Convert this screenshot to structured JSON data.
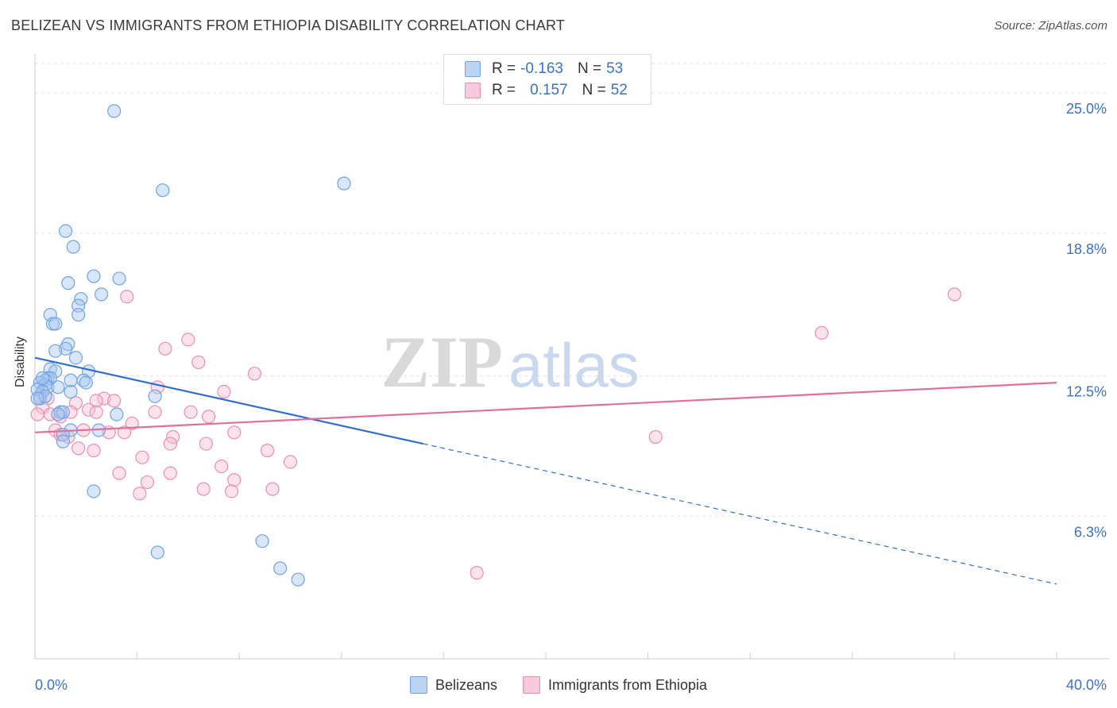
{
  "header": {
    "title": "BELIZEAN VS IMMIGRANTS FROM ETHIOPIA DISABILITY CORRELATION CHART",
    "source": "Source: ZipAtlas.com"
  },
  "watermark": {
    "part1": "ZIP",
    "part2": "atlas"
  },
  "legend_stats": [
    {
      "r_label": "R =",
      "r_value": "-0.163",
      "n_label": "N =",
      "n_value": "53"
    },
    {
      "r_label": "R =",
      "r_value": "0.157",
      "n_label": "N =",
      "n_value": "52"
    }
  ],
  "colors": {
    "blue": "#6fa3e6",
    "blue_fill": "#a9c8f0",
    "blue_line": "#2f6fcf",
    "pink": "#ea8fb0",
    "pink_fill": "#f6bfd2",
    "pink_line": "#e0709a",
    "tick_label": "#3b73c4",
    "grid": "#e3e3e3"
  },
  "chart_data": {
    "type": "scatter",
    "title": "BELIZEAN VS IMMIGRANTS FROM ETHIOPIA DISABILITY CORRELATION CHART",
    "xlabel": "",
    "ylabel": "Disability",
    "xlim": [
      0,
      40
    ],
    "ylim": [
      0,
      26.3
    ],
    "x_tick_labels": [
      "0.0%",
      "40.0%"
    ],
    "y_ticks": [
      6.3,
      12.5,
      18.8,
      25.0
    ],
    "y_tick_labels": [
      "6.3%",
      "12.5%",
      "18.8%",
      "25.0%"
    ],
    "grid": true,
    "legend_position": "bottom-center",
    "series": [
      {
        "name": "Belizeans",
        "color": "#6fa3e6",
        "trend": {
          "x": [
            0,
            15.2,
            40
          ],
          "y": [
            13.3,
            9.5,
            3.3
          ],
          "solid_until": 15.2
        },
        "points": [
          [
            3.1,
            24.2
          ],
          [
            5.0,
            20.7
          ],
          [
            12.1,
            21.0
          ],
          [
            1.2,
            18.9
          ],
          [
            1.5,
            18.2
          ],
          [
            2.3,
            16.9
          ],
          [
            3.3,
            16.8
          ],
          [
            1.3,
            16.6
          ],
          [
            2.6,
            16.1
          ],
          [
            1.8,
            15.9
          ],
          [
            1.7,
            15.6
          ],
          [
            1.7,
            15.2
          ],
          [
            0.6,
            15.2
          ],
          [
            0.7,
            14.8
          ],
          [
            0.8,
            14.8
          ],
          [
            1.3,
            13.9
          ],
          [
            1.2,
            13.7
          ],
          [
            0.8,
            13.6
          ],
          [
            1.6,
            13.3
          ],
          [
            0.6,
            12.8
          ],
          [
            0.8,
            12.7
          ],
          [
            2.1,
            12.7
          ],
          [
            0.5,
            12.4
          ],
          [
            0.6,
            12.4
          ],
          [
            0.4,
            12.3
          ],
          [
            1.4,
            12.3
          ],
          [
            1.9,
            12.3
          ],
          [
            2.0,
            12.2
          ],
          [
            0.2,
            12.2
          ],
          [
            0.4,
            12.1
          ],
          [
            0.5,
            12.0
          ],
          [
            0.9,
            12.0
          ],
          [
            0.1,
            11.9
          ],
          [
            0.3,
            11.8
          ],
          [
            1.4,
            11.8
          ],
          [
            0.2,
            11.5
          ],
          [
            0.4,
            11.6
          ],
          [
            4.7,
            11.6
          ],
          [
            1.0,
            10.9
          ],
          [
            1.1,
            10.9
          ],
          [
            0.9,
            10.8
          ],
          [
            3.2,
            10.8
          ],
          [
            1.4,
            10.1
          ],
          [
            2.5,
            10.1
          ],
          [
            1.1,
            9.9
          ],
          [
            1.1,
            9.6
          ],
          [
            2.3,
            7.4
          ],
          [
            8.9,
            5.2
          ],
          [
            4.8,
            4.7
          ],
          [
            9.6,
            4.0
          ],
          [
            10.3,
            3.5
          ],
          [
            0.1,
            11.5
          ],
          [
            0.3,
            12.4
          ]
        ]
      },
      {
        "name": "Immigrants from Ethiopia",
        "color": "#ea8fb0",
        "trend": {
          "x": [
            0,
            40
          ],
          "y": [
            10.0,
            12.2
          ]
        },
        "points": [
          [
            36.0,
            16.1
          ],
          [
            3.6,
            16.0
          ],
          [
            30.8,
            14.4
          ],
          [
            6.0,
            14.1
          ],
          [
            5.1,
            13.7
          ],
          [
            6.4,
            13.1
          ],
          [
            8.6,
            12.6
          ],
          [
            4.8,
            12.0
          ],
          [
            7.4,
            11.8
          ],
          [
            2.7,
            11.5
          ],
          [
            3.1,
            11.4
          ],
          [
            0.2,
            11.6
          ],
          [
            0.5,
            11.5
          ],
          [
            2.4,
            11.4
          ],
          [
            1.6,
            11.3
          ],
          [
            0.3,
            11.1
          ],
          [
            2.1,
            11.0
          ],
          [
            1.4,
            10.9
          ],
          [
            2.4,
            10.9
          ],
          [
            0.6,
            10.8
          ],
          [
            4.7,
            10.9
          ],
          [
            6.1,
            10.9
          ],
          [
            6.8,
            10.7
          ],
          [
            1.0,
            10.7
          ],
          [
            3.8,
            10.4
          ],
          [
            0.8,
            10.1
          ],
          [
            1.9,
            10.1
          ],
          [
            1.0,
            9.9
          ],
          [
            2.9,
            10.0
          ],
          [
            3.5,
            10.0
          ],
          [
            7.8,
            10.0
          ],
          [
            5.4,
            9.8
          ],
          [
            1.3,
            9.8
          ],
          [
            5.3,
            9.5
          ],
          [
            6.7,
            9.5
          ],
          [
            1.7,
            9.3
          ],
          [
            2.3,
            9.2
          ],
          [
            9.1,
            9.2
          ],
          [
            4.2,
            8.9
          ],
          [
            24.3,
            9.8
          ],
          [
            10.0,
            8.7
          ],
          [
            7.3,
            8.5
          ],
          [
            3.3,
            8.2
          ],
          [
            5.3,
            8.2
          ],
          [
            7.8,
            7.9
          ],
          [
            4.4,
            7.8
          ],
          [
            6.6,
            7.5
          ],
          [
            9.3,
            7.5
          ],
          [
            7.7,
            7.4
          ],
          [
            4.1,
            7.3
          ],
          [
            17.3,
            3.8
          ],
          [
            0.1,
            10.8
          ]
        ]
      }
    ]
  }
}
